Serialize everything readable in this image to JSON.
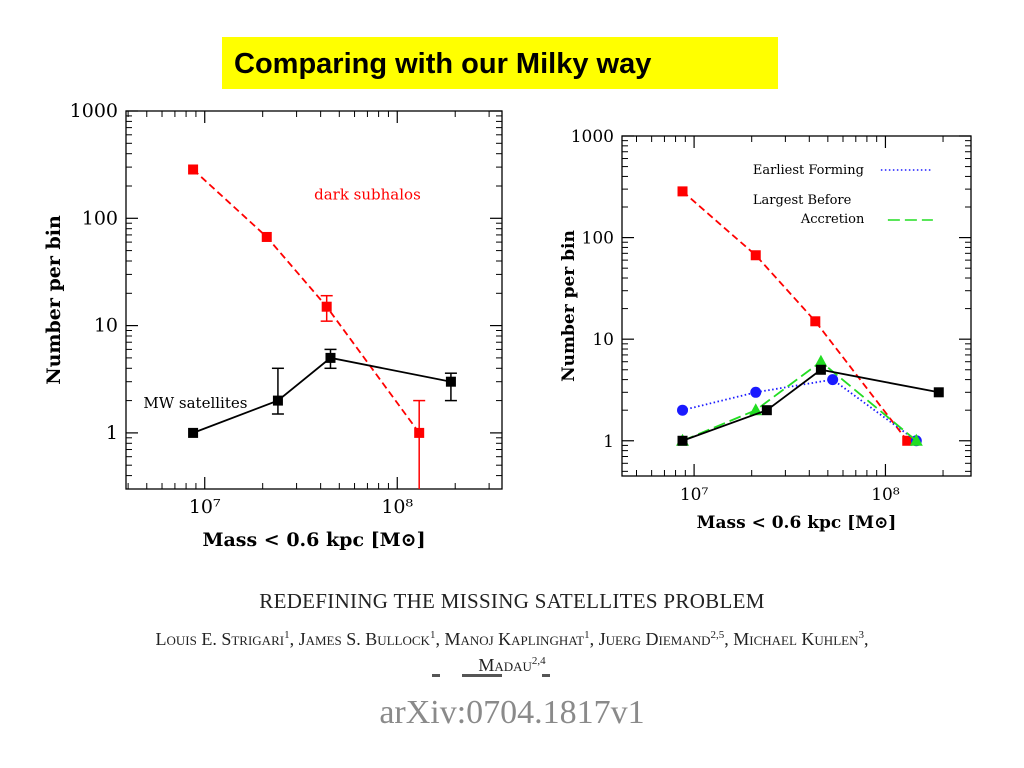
{
  "slide": {
    "title": "Comparing with our Milky way",
    "paper_title": "REDEFINING THE MISSING SATELLITES PROBLEM",
    "authors_line1": [
      {
        "name": "Louis E. Strigari",
        "sup": "1"
      },
      {
        "name": "James S. Bullock",
        "sup": "1"
      },
      {
        "name": "Manoj Kaplinghat",
        "sup": "1"
      },
      {
        "name": "Juerg Diemand",
        "sup": "2,5"
      },
      {
        "name": "Michael Kuhlen",
        "sup": "3"
      }
    ],
    "authors_line2": {
      "name": "Madau",
      "sup": "2,4"
    },
    "arxiv": "arXiv:0704.1817v1"
  },
  "chart_data": [
    {
      "type": "line",
      "ylabel": "Number per bin",
      "xlabel": "Mass < 0.6 kpc [M⊙]",
      "xscale": "log",
      "yscale": "log",
      "xlim": [
        3900000.0,
        350000000.0
      ],
      "ylim": [
        0.3,
        1000
      ],
      "x_ticks": [
        {
          "value": 10000000.0,
          "label": "10⁷"
        },
        {
          "value": 100000000.0,
          "label": "10⁸"
        }
      ],
      "y_ticks": [
        {
          "value": 1,
          "label": "1"
        },
        {
          "value": 10,
          "label": "10"
        },
        {
          "value": 100,
          "label": "100"
        },
        {
          "value": 1000,
          "label": "1000"
        }
      ],
      "series": [
        {
          "name": "dark subhalos",
          "color": "#ff0000",
          "style": "dashed",
          "marker": "square",
          "label_pos": [
            37000000.0,
            150
          ],
          "points": [
            {
              "x": 8700000.0,
              "y": 285
            },
            {
              "x": 21000000.0,
              "y": 67
            },
            {
              "x": 43000000.0,
              "y": 15,
              "err": [
                11,
                19
              ]
            },
            {
              "x": 130000000.0,
              "y": 1,
              "err": [
                0.3,
                2
              ]
            }
          ]
        },
        {
          "name": "MW satellites",
          "color": "#000000",
          "style": "solid",
          "marker": "square",
          "label_pos": [
            4800000.0,
            1.7
          ],
          "points": [
            {
              "x": 8700000.0,
              "y": 1
            },
            {
              "x": 24000000.0,
              "y": 2,
              "err": [
                1.5,
                4
              ]
            },
            {
              "x": 45000000.0,
              "y": 5,
              "err": [
                4,
                6
              ]
            },
            {
              "x": 190000000.0,
              "y": 3,
              "err": [
                2,
                3.6
              ]
            }
          ]
        }
      ]
    },
    {
      "type": "line",
      "ylabel": "Number per bin",
      "xlabel": "Mass < 0.6 kpc [M⊙]",
      "xscale": "log",
      "yscale": "log",
      "xlim": [
        4200000.0,
        280000000.0
      ],
      "ylim": [
        0.45,
        1000
      ],
      "x_ticks": [
        {
          "value": 10000000.0,
          "label": "10⁷"
        },
        {
          "value": 100000000.0,
          "label": "10⁸"
        }
      ],
      "y_ticks": [
        {
          "value": 1,
          "label": "1"
        },
        {
          "value": 10,
          "label": "10"
        },
        {
          "value": 100,
          "label": "100"
        },
        {
          "value": 1000,
          "label": "1000"
        }
      ],
      "legend": {
        "position": "top-right",
        "entries": [
          {
            "label": "Earliest Forming",
            "color": "#1a1aff",
            "style": "dotted"
          },
          {
            "label": "Largest Before Accretion",
            "line1": "Largest Before",
            "line2": "Accretion",
            "color": "#22dd22",
            "style": "longdash"
          }
        ]
      },
      "series": [
        {
          "name": "",
          "color": "#ff0000",
          "style": "dashed",
          "marker": "square",
          "points": [
            {
              "x": 8700000.0,
              "y": 285
            },
            {
              "x": 21000000.0,
              "y": 67
            },
            {
              "x": 43000000.0,
              "y": 15
            },
            {
              "x": 130000000.0,
              "y": 1
            }
          ]
        },
        {
          "name": "Earliest Forming",
          "color": "#1a1aff",
          "style": "dotted",
          "marker": "circle",
          "points": [
            {
              "x": 8700000.0,
              "y": 2
            },
            {
              "x": 21000000.0,
              "y": 3
            },
            {
              "x": 53000000.0,
              "y": 4
            },
            {
              "x": 145000000.0,
              "y": 1
            }
          ]
        },
        {
          "name": "Largest Before Accretion",
          "color": "#22dd22",
          "style": "longdash",
          "marker": "triangle",
          "points": [
            {
              "x": 8700000.0,
              "y": 1
            },
            {
              "x": 21000000.0,
              "y": 2
            },
            {
              "x": 46000000.0,
              "y": 6
            },
            {
              "x": 145000000.0,
              "y": 1
            }
          ]
        },
        {
          "name": "",
          "color": "#000000",
          "style": "solid",
          "marker": "square",
          "points": [
            {
              "x": 8700000.0,
              "y": 1
            },
            {
              "x": 24000000.0,
              "y": 2
            },
            {
              "x": 46000000.0,
              "y": 5
            },
            {
              "x": 190000000.0,
              "y": 3
            }
          ]
        }
      ]
    }
  ]
}
